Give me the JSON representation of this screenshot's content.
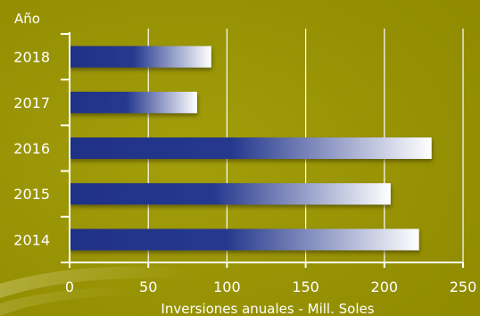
{
  "chart_data": {
    "type": "bar",
    "orientation": "horizontal",
    "ytitle": "Año",
    "xlabel": "Inversiones anuales - Mill. Soles",
    "categories": [
      "2018",
      "2017",
      "2016",
      "2015",
      "2014"
    ],
    "values": [
      90,
      81,
      230,
      204,
      222
    ],
    "xlim": [
      0,
      250
    ],
    "xticks": [
      "0",
      "50",
      "100",
      "150",
      "200",
      "250"
    ],
    "grid": "vertical",
    "colors": {
      "background": "#9b9600",
      "bar_dark": "#22348a",
      "bar_light": "#ffffff",
      "grid": "#ffffff",
      "text": "#ffffff"
    }
  }
}
